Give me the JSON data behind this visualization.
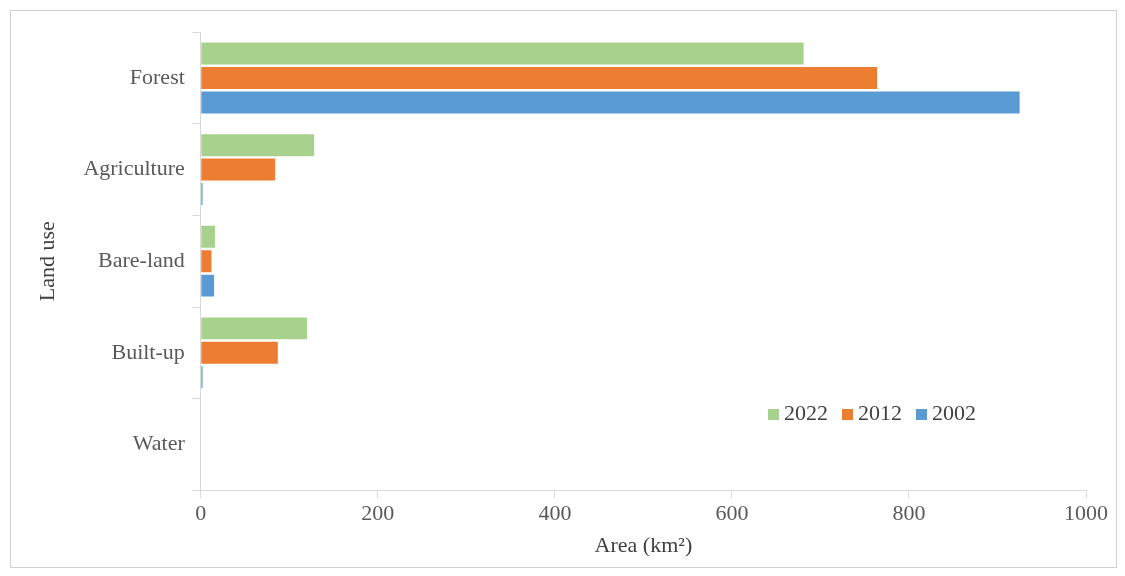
{
  "chart_data": {
    "type": "bar",
    "orientation": "horizontal",
    "xlabel": "Area (km²)",
    "ylabel": "Land use",
    "categories": [
      "Forest",
      "Agriculture",
      "Bare-land",
      "Built-up",
      "Water"
    ],
    "series": [
      {
        "name": "2022",
        "color": "#a9d18e",
        "values": [
          681,
          128,
          16,
          120,
          0
        ]
      },
      {
        "name": "2012",
        "color": "#ed7d31",
        "values": [
          764,
          84,
          12,
          87,
          0
        ]
      },
      {
        "name": "2002",
        "color": "#5b9bd5",
        "values": [
          925,
          2,
          15,
          2,
          0
        ]
      }
    ],
    "xlim": [
      0,
      1000
    ],
    "xticks": [
      0,
      200,
      400,
      600,
      800,
      1000
    ],
    "grid": false,
    "legend": "bottom right"
  }
}
